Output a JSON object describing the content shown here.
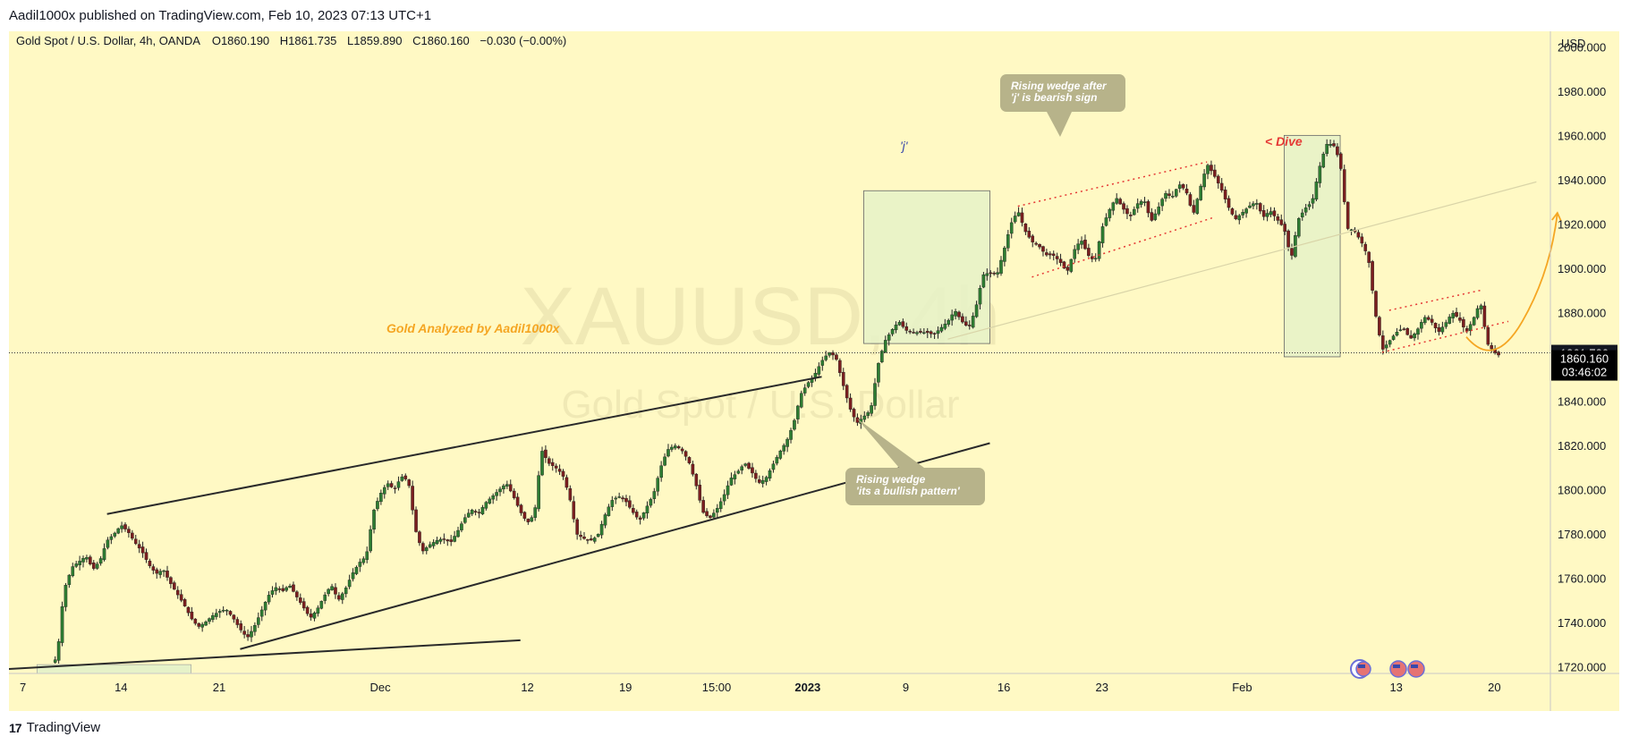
{
  "publish_line": "Aadil1000x published on TradingView.com, Feb 10, 2023 07:13 UTC+1",
  "footer_brand": "TradingView",
  "footer_logo": "17",
  "colors": {
    "background": "#fff9c4",
    "up": "#26a69a",
    "down": "#ef5350",
    "candle_up": "#2e7d32",
    "candle_down": "#7b1f1f",
    "wedge_line": "#2a2a2a",
    "dotted_red": "#e53935",
    "orange": "#f5a623",
    "callout_fill": "#b7b38a",
    "box_fill": "#e6f2c8"
  },
  "chart_data": {
    "type": "candlestick",
    "symbol_line": {
      "name": "Gold Spot / U.S. Dollar, 4h, OANDA",
      "open": "O1860.190",
      "high": "H1861.735",
      "low": "L1859.890",
      "close": "C1860.160",
      "change": "−0.030 (−0.00%)"
    },
    "watermark": {
      "ticker": "XAUUSD, 4h",
      "description": "Gold Spot / U.S. Dollar"
    },
    "y_axis": {
      "currency": "USD",
      "range": [
        1717,
        2007
      ],
      "ticks": [
        1720,
        1740,
        1760,
        1780,
        1800,
        1820,
        1840,
        1860,
        1880,
        1900,
        1920,
        1940,
        1960,
        1980,
        2000
      ],
      "tick_labels": [
        "1720.000",
        "1740.000",
        "1760.000",
        "1780.000",
        "1800.000",
        "1820.000",
        "1840.000",
        "1860.000",
        "1880.000",
        "1900.000",
        "1920.000",
        "1940.000",
        "1960.000",
        "1980.000",
        "2000.000"
      ]
    },
    "x_axis": {
      "range": [
        6,
        226
      ],
      "ticks": [
        {
          "x": 8,
          "label": "7",
          "bold": false
        },
        {
          "x": 22,
          "label": "14",
          "bold": false
        },
        {
          "x": 36,
          "label": "21",
          "bold": false
        },
        {
          "x": 59,
          "label": "Dec",
          "bold": false
        },
        {
          "x": 80,
          "label": "12",
          "bold": false
        },
        {
          "x": 94,
          "label": "19",
          "bold": false
        },
        {
          "x": 107,
          "label": "15:00",
          "bold": false
        },
        {
          "x": 120,
          "label": "2023",
          "bold": true
        },
        {
          "x": 134,
          "label": "9",
          "bold": false
        },
        {
          "x": 148,
          "label": "16",
          "bold": false
        },
        {
          "x": 162,
          "label": "23",
          "bold": false
        },
        {
          "x": 182,
          "label": "Feb",
          "bold": false
        },
        {
          "x": 204,
          "label": "13",
          "bold": false
        },
        {
          "x": 218,
          "label": "20",
          "bold": false
        }
      ]
    },
    "price_key": [
      [
        6,
        1716
      ],
      [
        8,
        1719
      ],
      [
        9,
        1716
      ],
      [
        10,
        1717
      ],
      [
        11,
        1720
      ],
      [
        12,
        1722
      ],
      [
        12.5,
        1722
      ],
      [
        13,
        1728
      ],
      [
        13.5,
        1745
      ],
      [
        14,
        1756
      ],
      [
        15,
        1765
      ],
      [
        17,
        1770
      ],
      [
        18,
        1764
      ],
      [
        19,
        1768
      ],
      [
        20,
        1777
      ],
      [
        21,
        1780
      ],
      [
        22,
        1784
      ],
      [
        23,
        1781
      ],
      [
        24,
        1776
      ],
      [
        25,
        1772
      ],
      [
        26,
        1766
      ],
      [
        27,
        1762
      ],
      [
        28,
        1764
      ],
      [
        29,
        1758
      ],
      [
        30,
        1753
      ],
      [
        31,
        1748
      ],
      [
        32,
        1742
      ],
      [
        33,
        1738
      ],
      [
        34,
        1740
      ],
      [
        35,
        1743
      ],
      [
        36,
        1745
      ],
      [
        37,
        1746
      ],
      [
        38,
        1742
      ],
      [
        39,
        1737
      ],
      [
        40,
        1733
      ],
      [
        41,
        1738
      ],
      [
        42,
        1745
      ],
      [
        43,
        1752
      ],
      [
        44,
        1756
      ],
      [
        45,
        1754
      ],
      [
        46,
        1757
      ],
      [
        47,
        1752
      ],
      [
        48,
        1747
      ],
      [
        49,
        1742
      ],
      [
        50,
        1746
      ],
      [
        51,
        1752
      ],
      [
        52,
        1757
      ],
      [
        53,
        1750
      ],
      [
        54,
        1755
      ],
      [
        55,
        1762
      ],
      [
        56,
        1767
      ],
      [
        57,
        1770
      ],
      [
        58,
        1790
      ],
      [
        59,
        1798
      ],
      [
        60,
        1803
      ],
      [
        61,
        1800
      ],
      [
        62,
        1806
      ],
      [
        63,
        1804
      ],
      [
        64,
        1782
      ],
      [
        65,
        1772
      ],
      [
        66,
        1775
      ],
      [
        67,
        1777
      ],
      [
        68,
        1778
      ],
      [
        69,
        1776
      ],
      [
        70,
        1781
      ],
      [
        71,
        1787
      ],
      [
        72,
        1791
      ],
      [
        73,
        1789
      ],
      [
        74,
        1794
      ],
      [
        75,
        1797
      ],
      [
        76,
        1800
      ],
      [
        77,
        1803
      ],
      [
        78,
        1797
      ],
      [
        79,
        1790
      ],
      [
        80,
        1785
      ],
      [
        81,
        1789
      ],
      [
        82,
        1818
      ],
      [
        83,
        1812
      ],
      [
        84,
        1810
      ],
      [
        85,
        1807
      ],
      [
        86,
        1797
      ],
      [
        87,
        1780
      ],
      [
        88,
        1778
      ],
      [
        89,
        1777
      ],
      [
        90,
        1779
      ],
      [
        91,
        1788
      ],
      [
        92,
        1795
      ],
      [
        93,
        1797
      ],
      [
        94,
        1795
      ],
      [
        95,
        1790
      ],
      [
        96,
        1786
      ],
      [
        97,
        1792
      ],
      [
        98,
        1798
      ],
      [
        99,
        1810
      ],
      [
        100,
        1818
      ],
      [
        101,
        1820
      ],
      [
        102,
        1818
      ],
      [
        103,
        1813
      ],
      [
        104,
        1803
      ],
      [
        105,
        1790
      ],
      [
        106,
        1787
      ],
      [
        107,
        1791
      ],
      [
        108,
        1797
      ],
      [
        109,
        1805
      ],
      [
        110,
        1808
      ],
      [
        111,
        1812
      ],
      [
        112,
        1808
      ],
      [
        113,
        1803
      ],
      [
        114,
        1805
      ],
      [
        115,
        1811
      ],
      [
        116,
        1817
      ],
      [
        117,
        1822
      ],
      [
        118,
        1830
      ],
      [
        119,
        1843
      ],
      [
        120,
        1848
      ],
      [
        121,
        1852
      ],
      [
        122,
        1858
      ],
      [
        123,
        1862
      ],
      [
        124,
        1860
      ],
      [
        125,
        1848
      ],
      [
        126,
        1837
      ],
      [
        127,
        1830
      ],
      [
        128,
        1833
      ],
      [
        129,
        1836
      ],
      [
        130,
        1856
      ],
      [
        131,
        1867
      ],
      [
        132,
        1872
      ],
      [
        133,
        1876
      ],
      [
        134,
        1872
      ],
      [
        135,
        1871
      ],
      [
        136,
        1871
      ],
      [
        137,
        1871
      ],
      [
        138,
        1870
      ],
      [
        139,
        1873
      ],
      [
        140,
        1876
      ],
      [
        141,
        1881
      ],
      [
        142,
        1876
      ],
      [
        143,
        1873
      ],
      [
        144,
        1882
      ],
      [
        145,
        1897
      ],
      [
        146,
        1898
      ],
      [
        147,
        1897
      ],
      [
        148,
        1908
      ],
      [
        149,
        1920
      ],
      [
        150,
        1926
      ],
      [
        151,
        1917
      ],
      [
        152,
        1912
      ],
      [
        153,
        1910
      ],
      [
        154,
        1906
      ],
      [
        155,
        1906
      ],
      [
        156,
        1903
      ],
      [
        157,
        1898
      ],
      [
        158,
        1908
      ],
      [
        159,
        1913
      ],
      [
        160,
        1906
      ],
      [
        161,
        1903
      ],
      [
        162,
        1918
      ],
      [
        163,
        1926
      ],
      [
        164,
        1932
      ],
      [
        165,
        1927
      ],
      [
        166,
        1923
      ],
      [
        167,
        1929
      ],
      [
        168,
        1931
      ],
      [
        169,
        1921
      ],
      [
        170,
        1927
      ],
      [
        171,
        1934
      ],
      [
        172,
        1932
      ],
      [
        173,
        1938
      ],
      [
        174,
        1935
      ],
      [
        175,
        1924
      ],
      [
        176,
        1936
      ],
      [
        177,
        1947
      ],
      [
        178,
        1942
      ],
      [
        179,
        1936
      ],
      [
        180,
        1928
      ],
      [
        181,
        1922
      ],
      [
        182,
        1925
      ],
      [
        183,
        1928
      ],
      [
        184,
        1930
      ],
      [
        185,
        1923
      ],
      [
        186,
        1926
      ],
      [
        187,
        1922
      ],
      [
        188,
        1918
      ],
      [
        189,
        1904
      ],
      [
        190,
        1922
      ],
      [
        191,
        1927
      ],
      [
        192,
        1930
      ],
      [
        193,
        1945
      ],
      [
        194,
        1956
      ],
      [
        195,
        1956
      ],
      [
        196,
        1948
      ],
      [
        197,
        1918
      ],
      [
        198,
        1917
      ],
      [
        199,
        1912
      ],
      [
        200,
        1905
      ],
      [
        201,
        1880
      ],
      [
        202,
        1863
      ],
      [
        203,
        1867
      ],
      [
        204,
        1871
      ],
      [
        205,
        1873
      ],
      [
        206,
        1868
      ],
      [
        207,
        1872
      ],
      [
        208,
        1878
      ],
      [
        209,
        1876
      ],
      [
        210,
        1871
      ],
      [
        211,
        1875
      ],
      [
        212,
        1880
      ],
      [
        213,
        1877
      ],
      [
        214,
        1871
      ],
      [
        215,
        1877
      ],
      [
        216,
        1885
      ],
      [
        217,
        1866
      ],
      [
        218,
        1862
      ],
      [
        219,
        1860
      ]
    ],
    "current_price": {
      "price": 1861.78,
      "label": "1861.780"
    },
    "last_close": {
      "price": 1860.16,
      "label": "1860.160",
      "countdown": "03:46:02"
    },
    "annotations": {
      "author_label": "Gold Analyzed by Aadil1000x",
      "j_label": "'j'",
      "dive_label": "< Dive",
      "callout_top": {
        "line1": "Rising wedge after",
        "line2": "'j' is bearish sign"
      },
      "callout_bottom": {
        "line1": "Rising wedge",
        "line2": "'its a bullish pattern'"
      }
    }
  }
}
